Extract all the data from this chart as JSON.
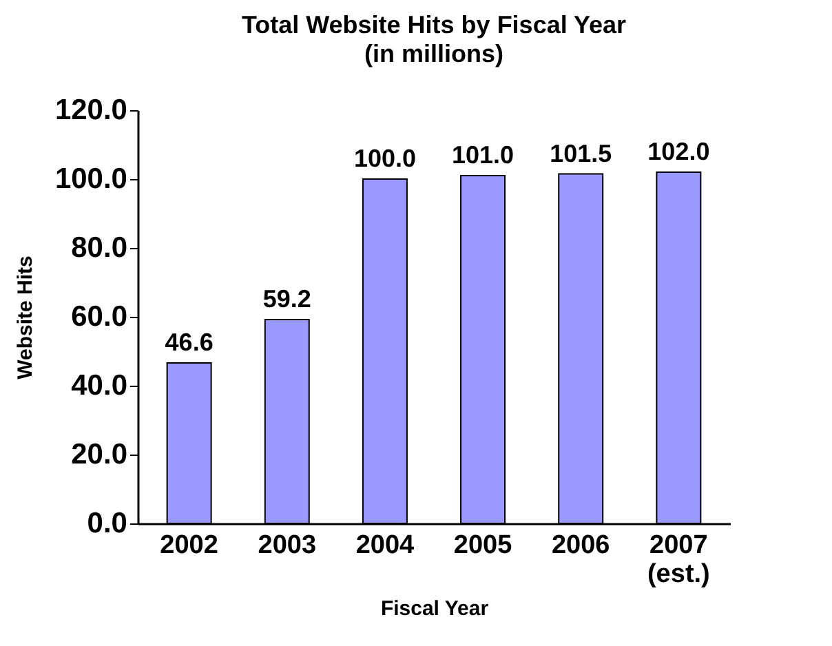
{
  "chart_data": {
    "type": "bar",
    "title": "Total Website Hits by Fiscal Year",
    "subtitle": "(in millions)",
    "xlabel": "Fiscal Year",
    "ylabel": "Website Hits",
    "categories": [
      "2002",
      "2003",
      "2004",
      "2005",
      "2006",
      "2007 (est.)"
    ],
    "values": [
      46.6,
      59.2,
      100.0,
      101.0,
      101.5,
      102.0
    ],
    "value_labels": [
      "46.6",
      "59.2",
      "100.0",
      "101.0",
      "101.5",
      "102.0"
    ],
    "color": "#9999ff",
    "ylim": [
      0,
      120
    ],
    "yticks": [
      {
        "value": 0,
        "label": "0.0"
      },
      {
        "value": 20,
        "label": "20.0"
      },
      {
        "value": 40,
        "label": "40.0"
      },
      {
        "value": 60,
        "label": "60.0"
      },
      {
        "value": 80,
        "label": "80.0"
      },
      {
        "value": 100,
        "label": "100.0"
      },
      {
        "value": 120,
        "label": "120.0"
      }
    ],
    "grid": false
  }
}
